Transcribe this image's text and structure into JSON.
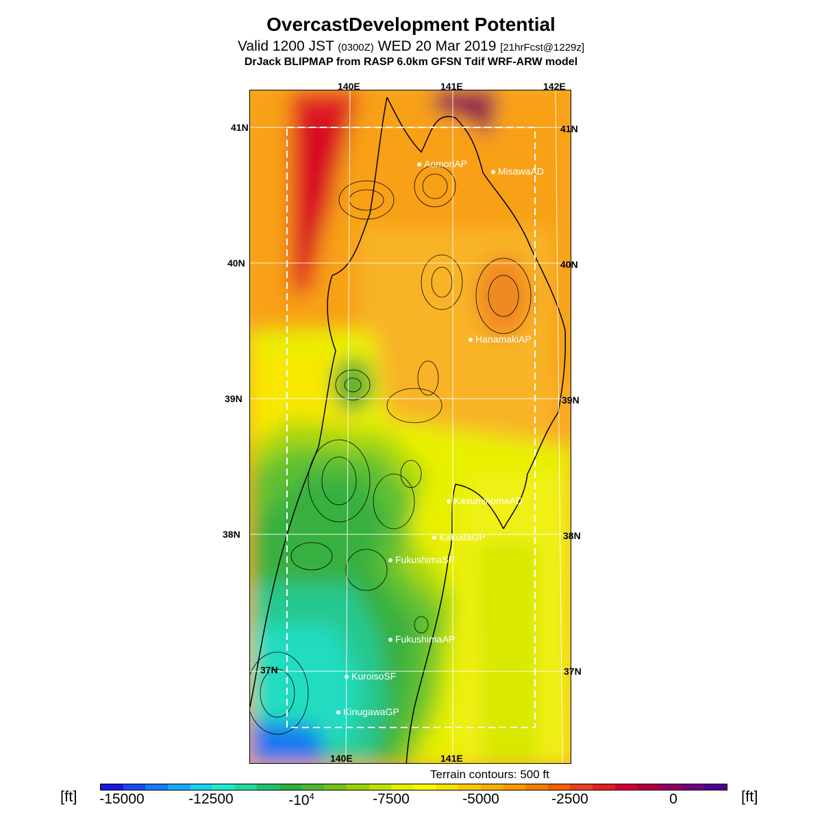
{
  "header": {
    "title": "OvercastDevelopment Potential",
    "valid_prefix": "Valid 1200 JST",
    "valid_utc": "(0300Z)",
    "valid_date": "WED 20 Mar 2019",
    "forecast": "[21hrFcst@1229z]",
    "model": "DrJack BLIPMAP from RASP 6.0km GFSN Tdif WRF-ARW model"
  },
  "axes": {
    "lon_top": [
      "140E",
      "141E",
      "142E"
    ],
    "lon_bottom": [
      "140E",
      "141E"
    ],
    "lat_left": [
      "41N",
      "40N",
      "39N",
      "38N",
      "37N"
    ],
    "lat_right": [
      "41N",
      "40N",
      "39N",
      "38N",
      "37N"
    ]
  },
  "stations": [
    {
      "name": "AomoriAP"
    },
    {
      "name": "MisawaAD"
    },
    {
      "name": "HanamakiAP"
    },
    {
      "name": "KasuminomeAD"
    },
    {
      "name": "KakudaGP"
    },
    {
      "name": "FukushimaSP"
    },
    {
      "name": "FukushimaAP"
    },
    {
      "name": "KuroisoSF"
    },
    {
      "name": "KinugawaGP"
    }
  ],
  "legend": {
    "terrain_note": "Terrain contours: 500 ft",
    "unit_left": "[ft]",
    "unit_right": "[ft]",
    "tick_labels": [
      "-15000",
      "-12500",
      "-10",
      "-7500",
      "-5000",
      "-2500",
      "0"
    ],
    "tick_exponent": "4",
    "colors": [
      "#1818e0",
      "#1848f0",
      "#1878f8",
      "#18a8f8",
      "#18d0f0",
      "#20e8d0",
      "#20d8a0",
      "#20c070",
      "#30b040",
      "#50b830",
      "#70c020",
      "#98d000",
      "#c0e000",
      "#e0f000",
      "#f8f800",
      "#f8e000",
      "#f8c800",
      "#f8b000",
      "#f89800",
      "#f08000",
      "#f06000",
      "#e84020",
      "#e02020",
      "#d00030",
      "#b00040",
      "#900060",
      "#700080",
      "#500090"
    ]
  },
  "colors": {
    "red_region": "#e02020",
    "purple_region": "#900050",
    "orange_region": "#f8a020",
    "yellow_region": "#f8e000",
    "green_region": "#40b840",
    "cyan_region": "#20e0c8",
    "blue_region": "#1860f0"
  }
}
